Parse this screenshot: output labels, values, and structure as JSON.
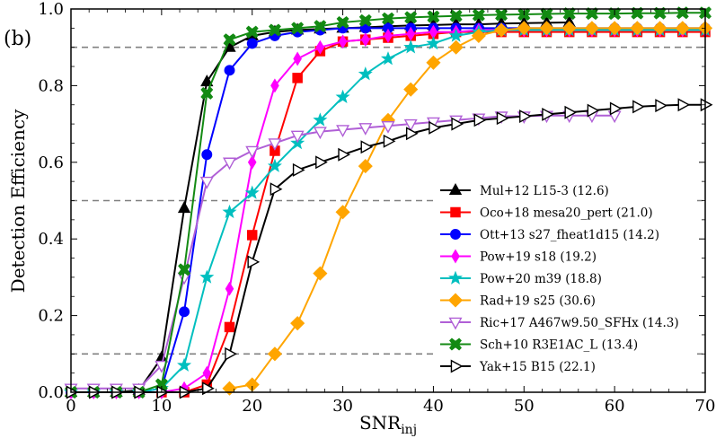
{
  "chart_data": {
    "type": "line",
    "panel_label": "(b)",
    "xlabel": "SNR",
    "xlabel_sub": "inj",
    "ylabel": "Detection Efficiency",
    "xlim": [
      0,
      70
    ],
    "ylim": [
      0,
      1
    ],
    "xticks": [
      0,
      10,
      20,
      30,
      40,
      50,
      60,
      70
    ],
    "yticks": [
      0.0,
      0.2,
      0.4,
      0.6,
      0.8,
      1.0
    ],
    "xtick_labels": [
      "0",
      "10",
      "20",
      "30",
      "40",
      "50",
      "60",
      "70"
    ],
    "ytick_labels": [
      "0.0",
      "0.2",
      "0.4",
      "0.6",
      "0.8",
      "1.0"
    ],
    "reference_lines": [
      0.1,
      0.5,
      0.9
    ],
    "legend_position": "lower-right",
    "series": [
      {
        "name": "Mul+12 L15-3 (12.6)",
        "color": "#000000",
        "marker": "triangle-up",
        "filled": true,
        "x": [
          0,
          2.5,
          5,
          7.5,
          10,
          12.5,
          15,
          17.5,
          20,
          22.5,
          25,
          27.5,
          30,
          32.5,
          35,
          37.5,
          40,
          42.5,
          45,
          47.5,
          50,
          52.5,
          55
        ],
        "y": [
          0,
          0,
          0,
          0.005,
          0.09,
          0.48,
          0.81,
          0.9,
          0.93,
          0.94,
          0.945,
          0.948,
          0.95,
          0.952,
          0.955,
          0.957,
          0.958,
          0.96,
          0.96,
          0.962,
          0.963,
          0.964,
          0.965
        ]
      },
      {
        "name": "Oco+18 mesa20_pert (21.0)",
        "color": "#ff0000",
        "marker": "square",
        "filled": true,
        "x": [
          0,
          2.5,
          5,
          7.5,
          10,
          12.5,
          15,
          17.5,
          20,
          22.5,
          25,
          27.5,
          30,
          32.5,
          35,
          37.5,
          40,
          42.5,
          45,
          47.5,
          50,
          52.5,
          55,
          57.5,
          60,
          62.5,
          65,
          67.5,
          70
        ],
        "y": [
          0,
          0,
          0,
          0,
          0,
          0,
          0.02,
          0.17,
          0.41,
          0.63,
          0.82,
          0.89,
          0.915,
          0.92,
          0.925,
          0.93,
          0.935,
          0.94,
          0.94,
          0.94,
          0.94,
          0.94,
          0.94,
          0.94,
          0.94,
          0.94,
          0.94,
          0.94,
          0.94
        ]
      },
      {
        "name": "Ott+13 s27_fheat1d15 (14.2)",
        "color": "#0000ff",
        "marker": "circle",
        "filled": true,
        "x": [
          0,
          2.5,
          5,
          7.5,
          10,
          12.5,
          15,
          17.5,
          20,
          22.5,
          25,
          27.5,
          30,
          32.5,
          35,
          37.5,
          40,
          42.5,
          45,
          47.5,
          50,
          52.5,
          55,
          57.5,
          60,
          62.5,
          65,
          67.5,
          70
        ],
        "y": [
          0,
          0,
          0,
          0,
          0.01,
          0.21,
          0.62,
          0.84,
          0.91,
          0.93,
          0.94,
          0.945,
          0.95,
          0.95,
          0.95,
          0.95,
          0.95,
          0.95,
          0.95,
          0.95,
          0.95,
          0.95,
          0.95,
          0.95,
          0.95,
          0.95,
          0.95,
          0.95,
          0.95
        ]
      },
      {
        "name": "Pow+19 s18 (19.2)",
        "color": "#ff00ff",
        "marker": "thin-diamond",
        "filled": true,
        "x": [
          0,
          2.5,
          5,
          7.5,
          10,
          12.5,
          15,
          17.5,
          20,
          22.5,
          25,
          27.5,
          30,
          32.5,
          35,
          37.5,
          40,
          42.5,
          45,
          47.5,
          50,
          52.5,
          55,
          57.5,
          60,
          62.5,
          65,
          67.5,
          70
        ],
        "y": [
          0,
          0,
          0,
          0,
          0,
          0.01,
          0.05,
          0.27,
          0.6,
          0.8,
          0.87,
          0.9,
          0.915,
          0.92,
          0.93,
          0.935,
          0.94,
          0.94,
          0.945,
          0.945,
          0.945,
          0.945,
          0.945,
          0.945,
          0.945,
          0.945,
          0.945,
          0.945,
          0.945
        ]
      },
      {
        "name": "Pow+20 m39 (18.8)",
        "color": "#00bfbf",
        "marker": "star",
        "filled": true,
        "x": [
          0,
          2.5,
          5,
          7.5,
          10,
          12.5,
          15,
          17.5,
          20,
          22.5,
          25,
          27.5,
          30,
          32.5,
          35,
          37.5,
          40,
          42.5,
          45,
          47.5,
          50,
          52.5,
          55,
          57.5,
          60,
          62.5,
          65,
          67.5,
          70
        ],
        "y": [
          0,
          0,
          0,
          0,
          0.01,
          0.07,
          0.3,
          0.47,
          0.52,
          0.59,
          0.65,
          0.71,
          0.77,
          0.83,
          0.87,
          0.9,
          0.91,
          0.93,
          0.94,
          0.945,
          0.945,
          0.945,
          0.945,
          0.945,
          0.945,
          0.945,
          0.945,
          0.945,
          0.945
        ]
      },
      {
        "name": "Rad+19 s25 (30.6)",
        "color": "#ffa500",
        "marker": "diamond",
        "filled": true,
        "x": [
          17.5,
          20,
          22.5,
          25,
          27.5,
          30,
          32.5,
          35,
          37.5,
          40,
          42.5,
          45,
          47.5,
          50,
          52.5,
          55,
          57.5,
          60,
          62.5,
          65,
          67.5,
          70
        ],
        "y": [
          0.01,
          0.02,
          0.1,
          0.18,
          0.31,
          0.47,
          0.59,
          0.71,
          0.79,
          0.86,
          0.9,
          0.93,
          0.945,
          0.95,
          0.95,
          0.95,
          0.95,
          0.95,
          0.95,
          0.95,
          0.95,
          0.95
        ]
      },
      {
        "name": "Ric+17 A467w9.50_SFHx (14.3)",
        "color": "#b05fd6",
        "marker": "triangle-down",
        "filled": false,
        "x": [
          0,
          2.5,
          5,
          7.5,
          10,
          12.5,
          15,
          17.5,
          20,
          22.5,
          25,
          27.5,
          30,
          32.5,
          35,
          37.5,
          40,
          42.5,
          45,
          47.5,
          50,
          52.5,
          55,
          57.5,
          60
        ],
        "y": [
          0.01,
          0.01,
          0.01,
          0.01,
          0.07,
          0.3,
          0.55,
          0.6,
          0.63,
          0.65,
          0.67,
          0.68,
          0.685,
          0.69,
          0.695,
          0.7,
          0.705,
          0.71,
          0.715,
          0.72,
          0.72,
          0.722,
          0.722,
          0.722,
          0.722
        ]
      },
      {
        "name": "Sch+10 R3E1AC_L (13.4)",
        "color": "#138a13",
        "marker": "x-filled",
        "filled": true,
        "x": [
          0,
          2.5,
          5,
          7.5,
          10,
          12.5,
          15,
          17.5,
          20,
          22.5,
          25,
          27.5,
          30,
          32.5,
          35,
          37.5,
          40,
          42.5,
          45,
          47.5,
          50,
          52.5,
          55,
          57.5,
          60,
          62.5,
          65,
          67.5,
          70
        ],
        "y": [
          0,
          0,
          0,
          0,
          0.02,
          0.32,
          0.78,
          0.92,
          0.94,
          0.945,
          0.95,
          0.955,
          0.965,
          0.97,
          0.975,
          0.978,
          0.98,
          0.982,
          0.984,
          0.985,
          0.986,
          0.987,
          0.988,
          0.988,
          0.988,
          0.989,
          0.989,
          0.99,
          0.99
        ]
      },
      {
        "name": "Yak+15 B15 (22.1)",
        "color": "#000000",
        "marker": "triangle-right",
        "filled": false,
        "x": [
          0,
          2.5,
          5,
          7.5,
          10,
          12.5,
          15,
          17.5,
          20,
          22.5,
          25,
          27.5,
          30,
          32.5,
          35,
          37.5,
          40,
          42.5,
          45,
          47.5,
          50,
          52.5,
          55,
          57.5,
          60,
          62.5,
          65,
          67.5,
          70
        ],
        "y": [
          0,
          0,
          0,
          0,
          0,
          0,
          0.01,
          0.1,
          0.34,
          0.53,
          0.58,
          0.6,
          0.62,
          0.64,
          0.655,
          0.675,
          0.69,
          0.7,
          0.71,
          0.715,
          0.72,
          0.725,
          0.73,
          0.735,
          0.74,
          0.745,
          0.748,
          0.75,
          0.75
        ]
      }
    ]
  }
}
